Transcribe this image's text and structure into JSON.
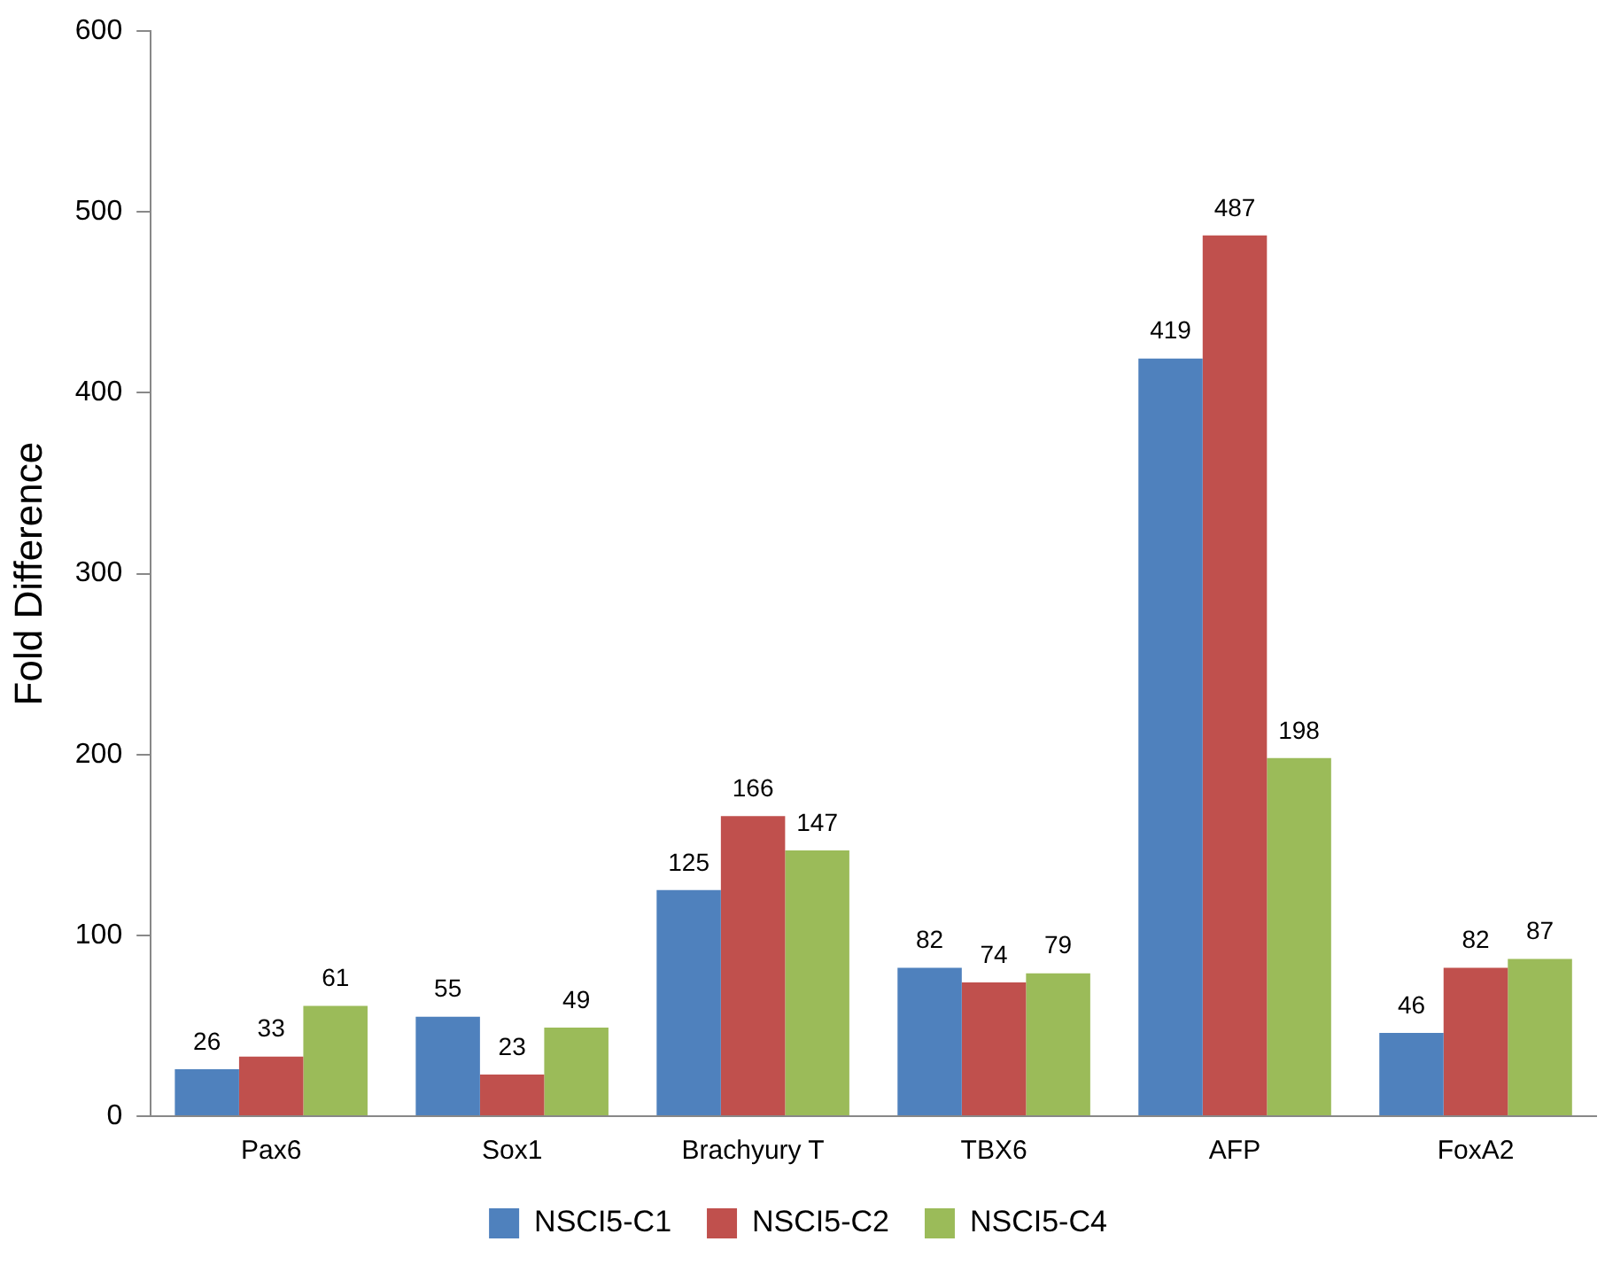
{
  "chart_data": {
    "type": "bar",
    "ylabel": "Fold Difference",
    "categories": [
      "Pax6",
      "Sox1",
      "Brachyury T",
      "TBX6",
      "AFP",
      "FoxA2"
    ],
    "series": [
      {
        "name": "NSCI5-C1",
        "color": "#4f81bd",
        "values": [
          26,
          55,
          125,
          82,
          419,
          46
        ]
      },
      {
        "name": "NSCI5-C2",
        "color": "#c0504d",
        "values": [
          33,
          23,
          166,
          74,
          487,
          82
        ]
      },
      {
        "name": "NSCI5-C4",
        "color": "#9bbb59",
        "values": [
          61,
          49,
          147,
          79,
          198,
          87
        ]
      }
    ],
    "ylim": [
      0,
      600
    ],
    "yticks": [
      0,
      100,
      200,
      300,
      400,
      500,
      600
    ],
    "grid": false,
    "legend": "bottom",
    "data_labels": true
  }
}
